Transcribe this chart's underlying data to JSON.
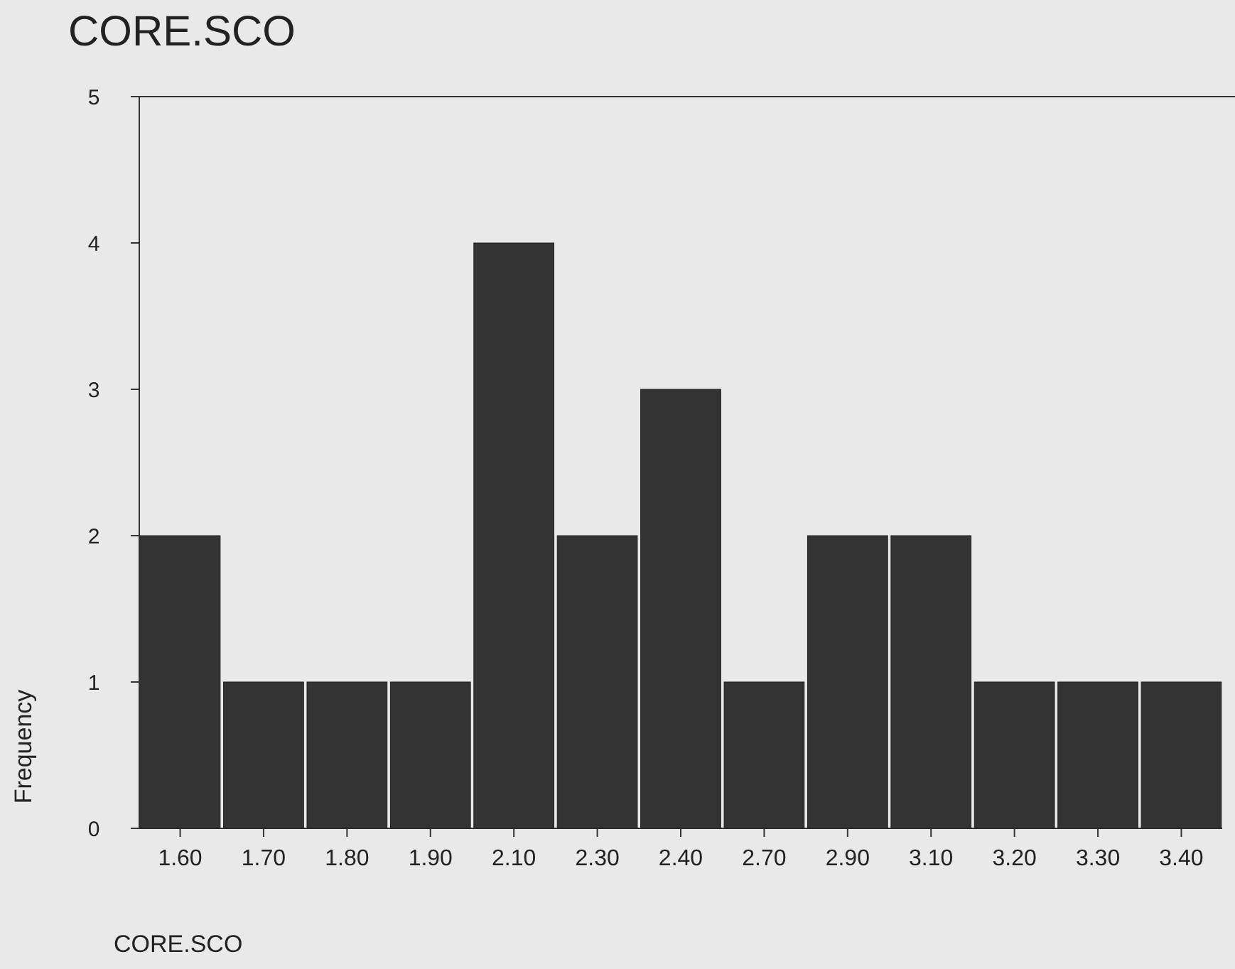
{
  "chart_data": {
    "type": "bar",
    "title": "CORE.SCO",
    "xlabel": "CORE.SCO",
    "ylabel": "Frequency",
    "categories": [
      "1.60",
      "1.70",
      "1.80",
      "1.90",
      "2.10",
      "2.30",
      "2.40",
      "2.70",
      "2.90",
      "3.10",
      "3.20",
      "3.30",
      "3.40"
    ],
    "values": [
      2,
      1,
      1,
      1,
      4,
      2,
      3,
      1,
      2,
      2,
      1,
      1,
      1
    ],
    "color": "#333333",
    "ylim": [
      0,
      5
    ],
    "yticks": [
      0,
      1,
      2,
      3,
      4,
      5
    ],
    "grid": false
  }
}
